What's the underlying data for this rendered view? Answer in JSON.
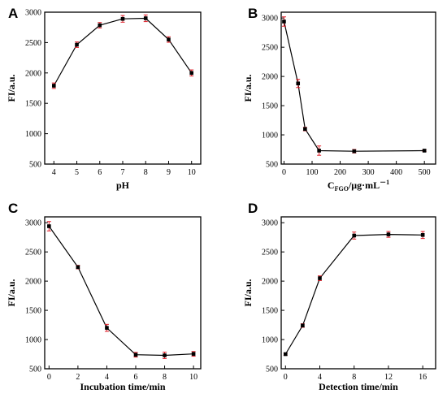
{
  "chart_data": [
    {
      "panel": "A",
      "type": "line",
      "xlabel": "pH",
      "ylabel": "FI/a.u.",
      "xlim": [
        3.6,
        10.4
      ],
      "ylim": [
        500,
        3000
      ],
      "xticks": [
        4,
        5,
        6,
        7,
        8,
        9,
        10
      ],
      "yticks": [
        500,
        1000,
        1500,
        2000,
        2500,
        3000
      ],
      "x": [
        4,
        5,
        6,
        7,
        8,
        9,
        10
      ],
      "y": [
        1790,
        2465,
        2785,
        2890,
        2900,
        2550,
        2000
      ],
      "err": [
        45,
        45,
        45,
        55,
        55,
        45,
        50
      ],
      "marker_color": "#000000",
      "error_color": "#e0202a"
    },
    {
      "panel": "B",
      "type": "line",
      "xlabel_main": "C",
      "xlabel_sub": "FGO",
      "xlabel_rest": "/μg·mL",
      "xlabel_sup": "－1",
      "ylabel": "FI/a.u.",
      "xlim": [
        -10,
        540
      ],
      "ylim": [
        500,
        3100
      ],
      "xticks": [
        0,
        100,
        200,
        300,
        400,
        500
      ],
      "yticks": [
        500,
        1000,
        1500,
        2000,
        2500,
        3000
      ],
      "x": [
        0,
        50,
        75,
        125,
        250,
        500
      ],
      "y": [
        2940,
        1880,
        1100,
        730,
        720,
        730
      ],
      "err": [
        80,
        70,
        30,
        80,
        30,
        15
      ],
      "marker_color": "#000000",
      "error_color": "#e0202a"
    },
    {
      "panel": "C",
      "type": "line",
      "xlabel": "Incubation time/min",
      "ylabel": "FI/a.u.",
      "xlim": [
        -0.3,
        10.5
      ],
      "ylim": [
        500,
        3100
      ],
      "xticks": [
        0,
        2,
        4,
        6,
        8,
        10
      ],
      "yticks": [
        500,
        1000,
        1500,
        2000,
        2500,
        3000
      ],
      "x": [
        0,
        2,
        4,
        6,
        8,
        10
      ],
      "y": [
        2940,
        2240,
        1200,
        740,
        730,
        755
      ],
      "err": [
        80,
        30,
        60,
        40,
        55,
        40
      ],
      "marker_color": "#000000",
      "error_color": "#e0202a"
    },
    {
      "panel": "D",
      "type": "line",
      "xlabel": "Detection time/min",
      "ylabel": "FI/a.u.",
      "xlim": [
        -0.5,
        17.5
      ],
      "ylim": [
        500,
        3100
      ],
      "xticks": [
        0,
        4,
        8,
        12,
        16
      ],
      "yticks": [
        500,
        1000,
        1500,
        2000,
        2500,
        3000
      ],
      "x": [
        0,
        2,
        4,
        8,
        12,
        16
      ],
      "y": [
        750,
        1240,
        2050,
        2780,
        2800,
        2790
      ],
      "err": [
        20,
        30,
        40,
        60,
        50,
        60
      ],
      "marker_color": "#000000",
      "error_color": "#e0202a"
    }
  ]
}
